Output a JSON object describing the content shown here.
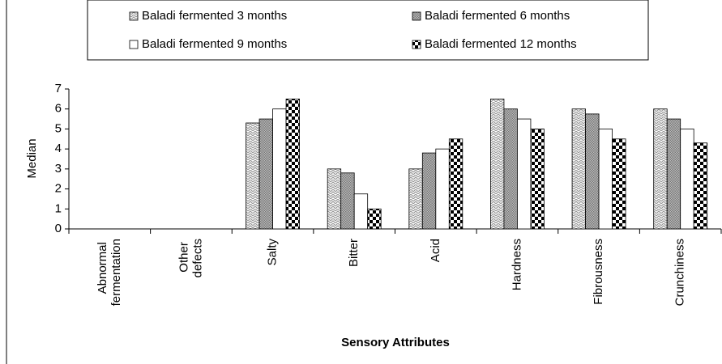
{
  "chart_data": {
    "type": "bar",
    "categories": [
      "Abnormal fermentation",
      "Other defects",
      "Salty",
      "Bitter",
      "Acid",
      "Hardness",
      "Fibrousness",
      "Crunchiness"
    ],
    "series": [
      {
        "name": "Baladi fermented 3 months",
        "color": "#999999",
        "values": [
          0,
          0,
          5.3,
          3,
          3,
          6.5,
          6,
          6
        ]
      },
      {
        "name": "Baladi fermented 6 months",
        "color": "#777777",
        "values": [
          0,
          0,
          5.5,
          2.8,
          3.8,
          6,
          5.75,
          5.5
        ]
      },
      {
        "name": "Baladi fermented 9 months",
        "color": "#ffffff",
        "values": [
          0,
          0,
          6,
          1.75,
          4,
          5.5,
          5,
          5
        ]
      },
      {
        "name": "Baladi fermented 12 months",
        "color": "#000000",
        "values": [
          0,
          0,
          6.5,
          1,
          4.5,
          5,
          4.5,
          4.3
        ]
      }
    ],
    "ylabel": "Median",
    "xlabel": "Sensory Attributes",
    "ylim": [
      0,
      7
    ],
    "yticks": [
      0,
      1,
      2,
      3,
      4,
      5,
      6,
      7
    ]
  }
}
